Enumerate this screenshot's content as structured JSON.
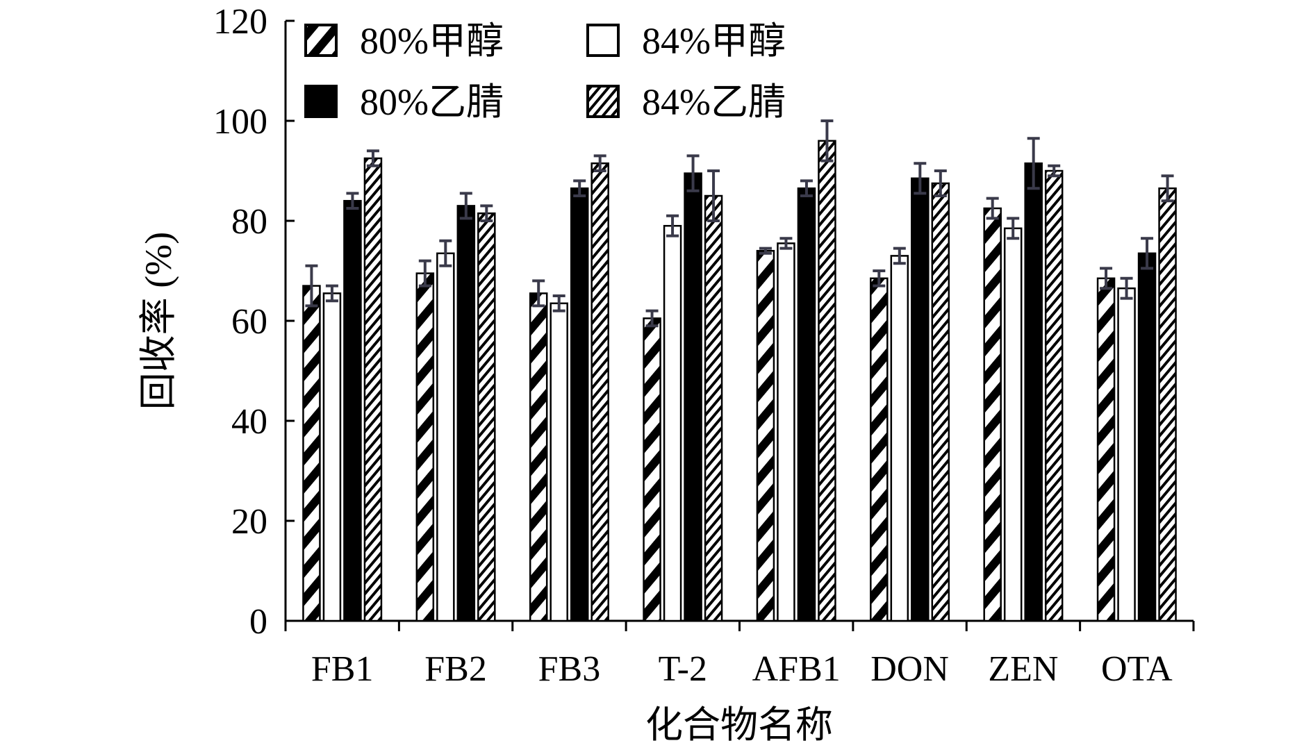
{
  "chart_data": {
    "type": "bar",
    "title": "",
    "xlabel": "化合物名称",
    "ylabel": "回收率 (%)",
    "ylim": [
      0,
      120
    ],
    "yticks": [
      0,
      20,
      40,
      60,
      80,
      100,
      120
    ],
    "grid": false,
    "legend_position": "top-left",
    "categories": [
      "FB1",
      "FB2",
      "FB3",
      "T-2",
      "AFB1",
      "DON",
      "ZEN",
      "OTA"
    ],
    "series": [
      {
        "name": "80%甲醇",
        "pattern": "diag-thick",
        "values": [
          67,
          69.5,
          65.5,
          60.5,
          74,
          68.5,
          82.5,
          68.5
        ],
        "errors": [
          4,
          2.5,
          2.5,
          1.5,
          0.5,
          1.5,
          2,
          2
        ]
      },
      {
        "name": "84%甲醇",
        "pattern": "white",
        "values": [
          65.5,
          73.5,
          63.5,
          79,
          75.5,
          73,
          78.5,
          66.5
        ],
        "errors": [
          1.5,
          2.5,
          1.5,
          2,
          1,
          1.5,
          2,
          2
        ]
      },
      {
        "name": "80%乙腈",
        "pattern": "black",
        "values": [
          84,
          83,
          86.5,
          89.5,
          86.5,
          88.5,
          91.5,
          73.5
        ],
        "errors": [
          1.5,
          2.5,
          1.5,
          3.5,
          1.5,
          3,
          5,
          3
        ]
      },
      {
        "name": "84%乙腈",
        "pattern": "diag-thin",
        "values": [
          92.5,
          81.5,
          91.5,
          85,
          96,
          87.5,
          90,
          86.5
        ],
        "errors": [
          1.5,
          1.5,
          1.5,
          5,
          4,
          2.5,
          1,
          2.5
        ]
      }
    ],
    "colors": {
      "bar_outline": "#000000",
      "error_bar": "#3a3a4a",
      "fill_black": "#000000",
      "fill_white": "#ffffff"
    }
  }
}
